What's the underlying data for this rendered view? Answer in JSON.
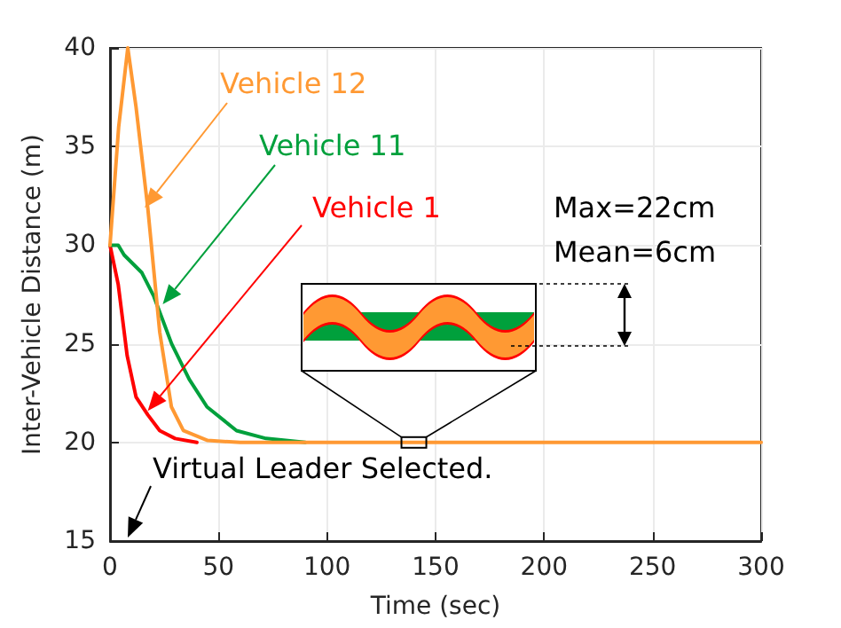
{
  "chart_data": {
    "type": "line",
    "xlabel": "Time (sec)",
    "ylabel": "Inter-Vehicle Distance (m)",
    "xlim": [
      0,
      300
    ],
    "xticks": [
      0,
      50,
      100,
      150,
      200,
      250,
      300
    ],
    "ylim": [
      15,
      40
    ],
    "yticks": [
      15,
      20,
      25,
      30,
      35,
      40
    ],
    "grid": true,
    "legend": false,
    "marker": "none",
    "line_style": "solid",
    "series": [
      {
        "name": "Vehicle 1",
        "color": "#ff0000",
        "x": [
          0,
          3.8,
          7.9,
          12,
          17.4,
          22.9,
          30,
          40
        ],
        "values": [
          30,
          28.0,
          24.4,
          22.3,
          21.4,
          20.6,
          20.2,
          20
        ]
      },
      {
        "name": "Vehicle 11",
        "color": "#00a03c",
        "x": [
          0,
          3.8,
          6.5,
          14.7,
          20.2,
          28.4,
          36.5,
          44.7,
          58.3,
          71.9,
          90
        ],
        "values": [
          30,
          30.0,
          29.5,
          28.6,
          27.4,
          25.0,
          23.2,
          21.8,
          20.6,
          20.2,
          20
        ]
      },
      {
        "name": "Vehicle 12",
        "color": "#ff9933",
        "x": [
          0,
          4,
          8.2,
          12,
          17.4,
          22.9,
          28.3,
          33.8,
          45,
          60,
          100,
          150,
          200,
          250,
          300
        ],
        "values": [
          30,
          36,
          40,
          37,
          31.9,
          25.6,
          21.8,
          20.6,
          20.1,
          20,
          20,
          20,
          20,
          20,
          20
        ]
      }
    ],
    "annotations": [
      "Virtual Leader Selected.",
      "Max=22cm",
      "Mean=6cm"
    ]
  }
}
